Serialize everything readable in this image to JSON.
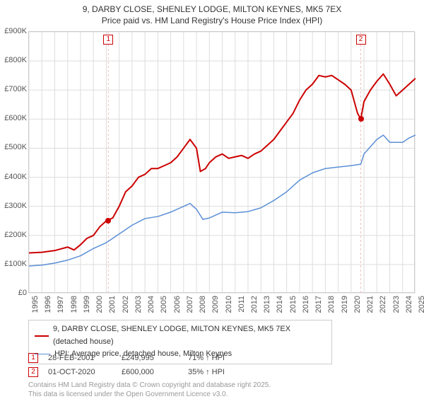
{
  "title_line1": "9, DARBY CLOSE, SHENLEY LODGE, MILTON KEYNES, MK5 7EX",
  "title_line2": "Price paid vs. HM Land Registry's House Price Index (HPI)",
  "chart": {
    "type": "line",
    "background_color": "#ffffff",
    "grid_color": "#dddddd",
    "ylim": [
      0,
      900000
    ],
    "ytick_step": 100000,
    "yticks": [
      "£0",
      "£100K",
      "£200K",
      "£300K",
      "£400K",
      "£500K",
      "£600K",
      "£700K",
      "£800K",
      "£900K"
    ],
    "xlim": [
      1995,
      2025
    ],
    "xticks": [
      "1995",
      "1996",
      "1997",
      "1998",
      "1999",
      "2000",
      "2001",
      "2002",
      "2003",
      "2004",
      "2005",
      "2006",
      "2007",
      "2008",
      "2009",
      "2010",
      "2011",
      "2012",
      "2013",
      "2014",
      "2015",
      "2016",
      "2017",
      "2018",
      "2019",
      "2020",
      "2021",
      "2022",
      "2023",
      "2024",
      "2025"
    ],
    "label_fontsize": 11,
    "title_fontsize": 12,
    "series": [
      {
        "name": "9, DARBY CLOSE, SHENLEY LODGE, MILTON KEYNES, MK5 7EX (detached house)",
        "short": "price_paid",
        "color": "#cc0000",
        "line_width": 2,
        "data": [
          [
            1995,
            140000
          ],
          [
            1996,
            142000
          ],
          [
            1997,
            148000
          ],
          [
            1998,
            160000
          ],
          [
            1998.5,
            150000
          ],
          [
            1999,
            168000
          ],
          [
            1999.5,
            190000
          ],
          [
            2000,
            200000
          ],
          [
            2000.5,
            230000
          ],
          [
            2001,
            250000
          ],
          [
            2001.5,
            260000
          ],
          [
            2002,
            300000
          ],
          [
            2002.5,
            350000
          ],
          [
            2003,
            370000
          ],
          [
            2003.5,
            400000
          ],
          [
            2004,
            410000
          ],
          [
            2004.5,
            430000
          ],
          [
            2005,
            430000
          ],
          [
            2005.5,
            440000
          ],
          [
            2006,
            450000
          ],
          [
            2006.5,
            470000
          ],
          [
            2007,
            500000
          ],
          [
            2007.5,
            530000
          ],
          [
            2008,
            500000
          ],
          [
            2008.3,
            420000
          ],
          [
            2008.7,
            430000
          ],
          [
            2009,
            450000
          ],
          [
            2009.5,
            470000
          ],
          [
            2010,
            480000
          ],
          [
            2010.5,
            465000
          ],
          [
            2011,
            470000
          ],
          [
            2011.5,
            475000
          ],
          [
            2012,
            465000
          ],
          [
            2012.5,
            480000
          ],
          [
            2013,
            490000
          ],
          [
            2013.5,
            510000
          ],
          [
            2014,
            530000
          ],
          [
            2014.5,
            560000
          ],
          [
            2015,
            590000
          ],
          [
            2015.5,
            620000
          ],
          [
            2016,
            665000
          ],
          [
            2016.5,
            700000
          ],
          [
            2017,
            720000
          ],
          [
            2017.5,
            750000
          ],
          [
            2018,
            745000
          ],
          [
            2018.5,
            750000
          ],
          [
            2019,
            735000
          ],
          [
            2019.5,
            720000
          ],
          [
            2020,
            700000
          ],
          [
            2020.5,
            620000
          ],
          [
            2020.75,
            600000
          ],
          [
            2021,
            660000
          ],
          [
            2021.5,
            700000
          ],
          [
            2022,
            730000
          ],
          [
            2022.5,
            755000
          ],
          [
            2023,
            720000
          ],
          [
            2023.5,
            680000
          ],
          [
            2024,
            700000
          ],
          [
            2024.5,
            720000
          ],
          [
            2025,
            740000
          ]
        ]
      },
      {
        "name": "HPI: Average price, detached house, Milton Keynes",
        "short": "hpi",
        "color": "#5b8fd6",
        "line_width": 1.5,
        "data": [
          [
            1995,
            95000
          ],
          [
            1996,
            98000
          ],
          [
            1997,
            105000
          ],
          [
            1998,
            115000
          ],
          [
            1999,
            130000
          ],
          [
            2000,
            155000
          ],
          [
            2001,
            175000
          ],
          [
            2002,
            205000
          ],
          [
            2003,
            235000
          ],
          [
            2004,
            258000
          ],
          [
            2005,
            265000
          ],
          [
            2006,
            280000
          ],
          [
            2007,
            300000
          ],
          [
            2007.5,
            310000
          ],
          [
            2008,
            290000
          ],
          [
            2008.5,
            255000
          ],
          [
            2009,
            260000
          ],
          [
            2010,
            280000
          ],
          [
            2011,
            278000
          ],
          [
            2012,
            282000
          ],
          [
            2013,
            295000
          ],
          [
            2014,
            320000
          ],
          [
            2015,
            350000
          ],
          [
            2016,
            390000
          ],
          [
            2017,
            415000
          ],
          [
            2018,
            430000
          ],
          [
            2019,
            435000
          ],
          [
            2020,
            440000
          ],
          [
            2020.75,
            445000
          ],
          [
            2021,
            480000
          ],
          [
            2022,
            530000
          ],
          [
            2022.5,
            545000
          ],
          [
            2023,
            520000
          ],
          [
            2024,
            520000
          ],
          [
            2024.5,
            535000
          ],
          [
            2025,
            545000
          ]
        ]
      }
    ],
    "markers": [
      {
        "label": "1",
        "x": 2001.16,
        "y": 249995,
        "line_color": "#eebfbf"
      },
      {
        "label": "2",
        "x": 2020.75,
        "y": 600000,
        "line_color": "#eebfbf"
      }
    ]
  },
  "legend": {
    "position": "below"
  },
  "transactions": {
    "columns": [
      "marker",
      "date",
      "price",
      "delta"
    ],
    "rows": [
      {
        "marker": "1",
        "date": "28-FEB-2001",
        "price": "£249,995",
        "delta": "71% ↑ HPI"
      },
      {
        "marker": "2",
        "date": "01-OCT-2020",
        "price": "£600,000",
        "delta": "35% ↑ HPI"
      }
    ]
  },
  "footer_line1": "Contains HM Land Registry data © Crown copyright and database right 2025.",
  "footer_line2": "This data is licensed under the Open Government Licence v3.0."
}
